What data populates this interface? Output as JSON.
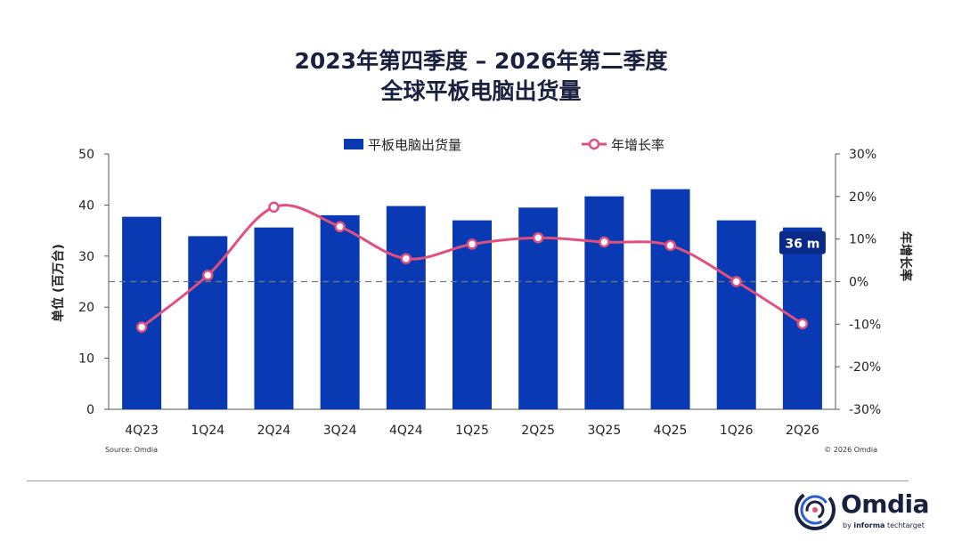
{
  "title": {
    "line1": "2023年第四季度 – 2026年第二季度",
    "line2": "全球平板电脑出货量"
  },
  "chart_data": {
    "type": "bar",
    "categories": [
      "4Q23",
      "1Q24",
      "2Q24",
      "3Q24",
      "4Q24",
      "1Q25",
      "2Q25",
      "3Q25",
      "4Q25",
      "1Q26",
      "2Q26"
    ],
    "series": [
      {
        "name": "平板电脑出货量",
        "type": "bar",
        "axis": "left",
        "color": "#0a3ab3",
        "values": [
          37.7,
          33.9,
          35.6,
          38.0,
          39.8,
          37.0,
          39.5,
          41.7,
          43.1,
          37.0,
          35.6
        ]
      },
      {
        "name": "年增长率",
        "type": "line",
        "axis": "right",
        "color": "#e0507f",
        "values": [
          -10.7,
          1.5,
          17.5,
          12.9,
          5.4,
          8.8,
          10.3,
          9.3,
          8.5,
          0.0,
          -9.9
        ]
      }
    ],
    "ylabel_left": "单位 (百万台)",
    "ylabel_right": "年增长率",
    "ylim_left": [
      0,
      50
    ],
    "yticks_left": [
      "0",
      "10",
      "20",
      "30",
      "40",
      "50"
    ],
    "ylim_right": [
      -30,
      30
    ],
    "yticks_right": [
      "-30%",
      "-20%",
      "-10%",
      "0%",
      "10%",
      "20%",
      "30%"
    ],
    "grid": false,
    "reference_line": {
      "axis": "right",
      "value": 0,
      "style": "dashed"
    },
    "legend_position": "top-center",
    "annotation": {
      "category": "2Q26",
      "text": "36 m"
    }
  },
  "source": "Source: Omdia",
  "copyright": "© 2026 Omdia",
  "logo": {
    "word": "Omdia",
    "sub_prefix": "by ",
    "sub_bold": "informa",
    "sub_rest": " techtarget",
    "icon": "omdia-swirl-icon"
  }
}
